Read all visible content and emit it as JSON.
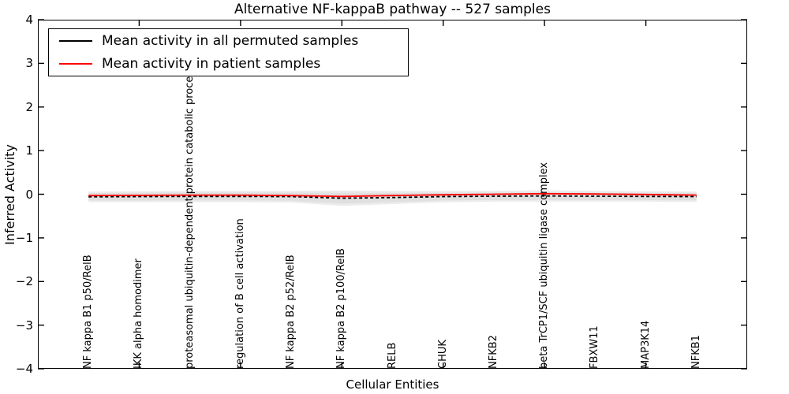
{
  "figure": {
    "title": "Alternative NF-kappaB pathway -- 527 samples",
    "xlabel": "Cellular Entities",
    "ylabel": "Inferred Activity"
  },
  "legend": {
    "entries": [
      {
        "label": "Mean activity in all permuted samples",
        "color": "#000000"
      },
      {
        "label": "Mean activity in patient samples",
        "color": "#ff0000"
      }
    ]
  },
  "chart_data": {
    "type": "line",
    "title": "Alternative NF-kappaB pathway -- 527 samples",
    "xlabel": "Cellular Entities",
    "ylabel": "Inferred Activity",
    "xlim": [
      0,
      14
    ],
    "ylim": [
      -4,
      4
    ],
    "grid": false,
    "legend_position": "upper left",
    "ytick_labels": [
      "4",
      "3",
      "2",
      "1",
      "0",
      "−1",
      "−2",
      "−3",
      "−4"
    ],
    "ytick_values": [
      4,
      3,
      2,
      1,
      0,
      -1,
      -2,
      -3,
      -4
    ],
    "xtick_line_positions": [
      2,
      4,
      6,
      8,
      10,
      12
    ],
    "category_positions": [
      1,
      2,
      3,
      4,
      5,
      6,
      7,
      8,
      9,
      10,
      11,
      12,
      13
    ],
    "categories": [
      "NF kappa B1 p50/RelB",
      "IKK alpha homodimer",
      "proteasomal ubiquitin-dependent protein catabolic process",
      "regulation of B cell activation",
      "NF kappa B2 p52/RelB",
      "NF kappa B2 p100/RelB",
      "RELB",
      "CHUK",
      "NFKB2",
      "beta TrCP1/SCF ubiquitin ligase complex",
      "FBXW11",
      "MAP3K14",
      "NFKB1"
    ],
    "series": [
      {
        "name": "Mean activity in all permuted samples",
        "color": "#000000",
        "line_style": "dashed",
        "values": [
          -0.06,
          -0.055,
          -0.05,
          -0.05,
          -0.055,
          -0.09,
          -0.075,
          -0.055,
          -0.045,
          -0.04,
          -0.045,
          -0.05,
          -0.055
        ]
      },
      {
        "name": "Mean activity in patient samples",
        "color": "#ff0000",
        "line_style": "solid",
        "values": [
          -0.03,
          -0.025,
          -0.02,
          -0.02,
          -0.03,
          -0.05,
          -0.03,
          -0.012,
          0.0,
          0.012,
          0.005,
          -0.005,
          -0.02
        ]
      }
    ],
    "bands": [
      {
        "name": "permuted-range-outer",
        "color": "#ececec",
        "center_series": 0,
        "halfwidths": [
          0.12,
          0.125,
          0.13,
          0.13,
          0.135,
          0.175,
          0.15,
          0.13,
          0.125,
          0.13,
          0.125,
          0.12,
          0.12
        ]
      },
      {
        "name": "permuted-range-inner",
        "color": "#e0e0e0",
        "center_series": 0,
        "halfwidths": [
          0.085,
          0.09,
          0.09,
          0.09,
          0.095,
          0.125,
          0.105,
          0.09,
          0.085,
          0.09,
          0.085,
          0.085,
          0.085
        ]
      }
    ]
  }
}
